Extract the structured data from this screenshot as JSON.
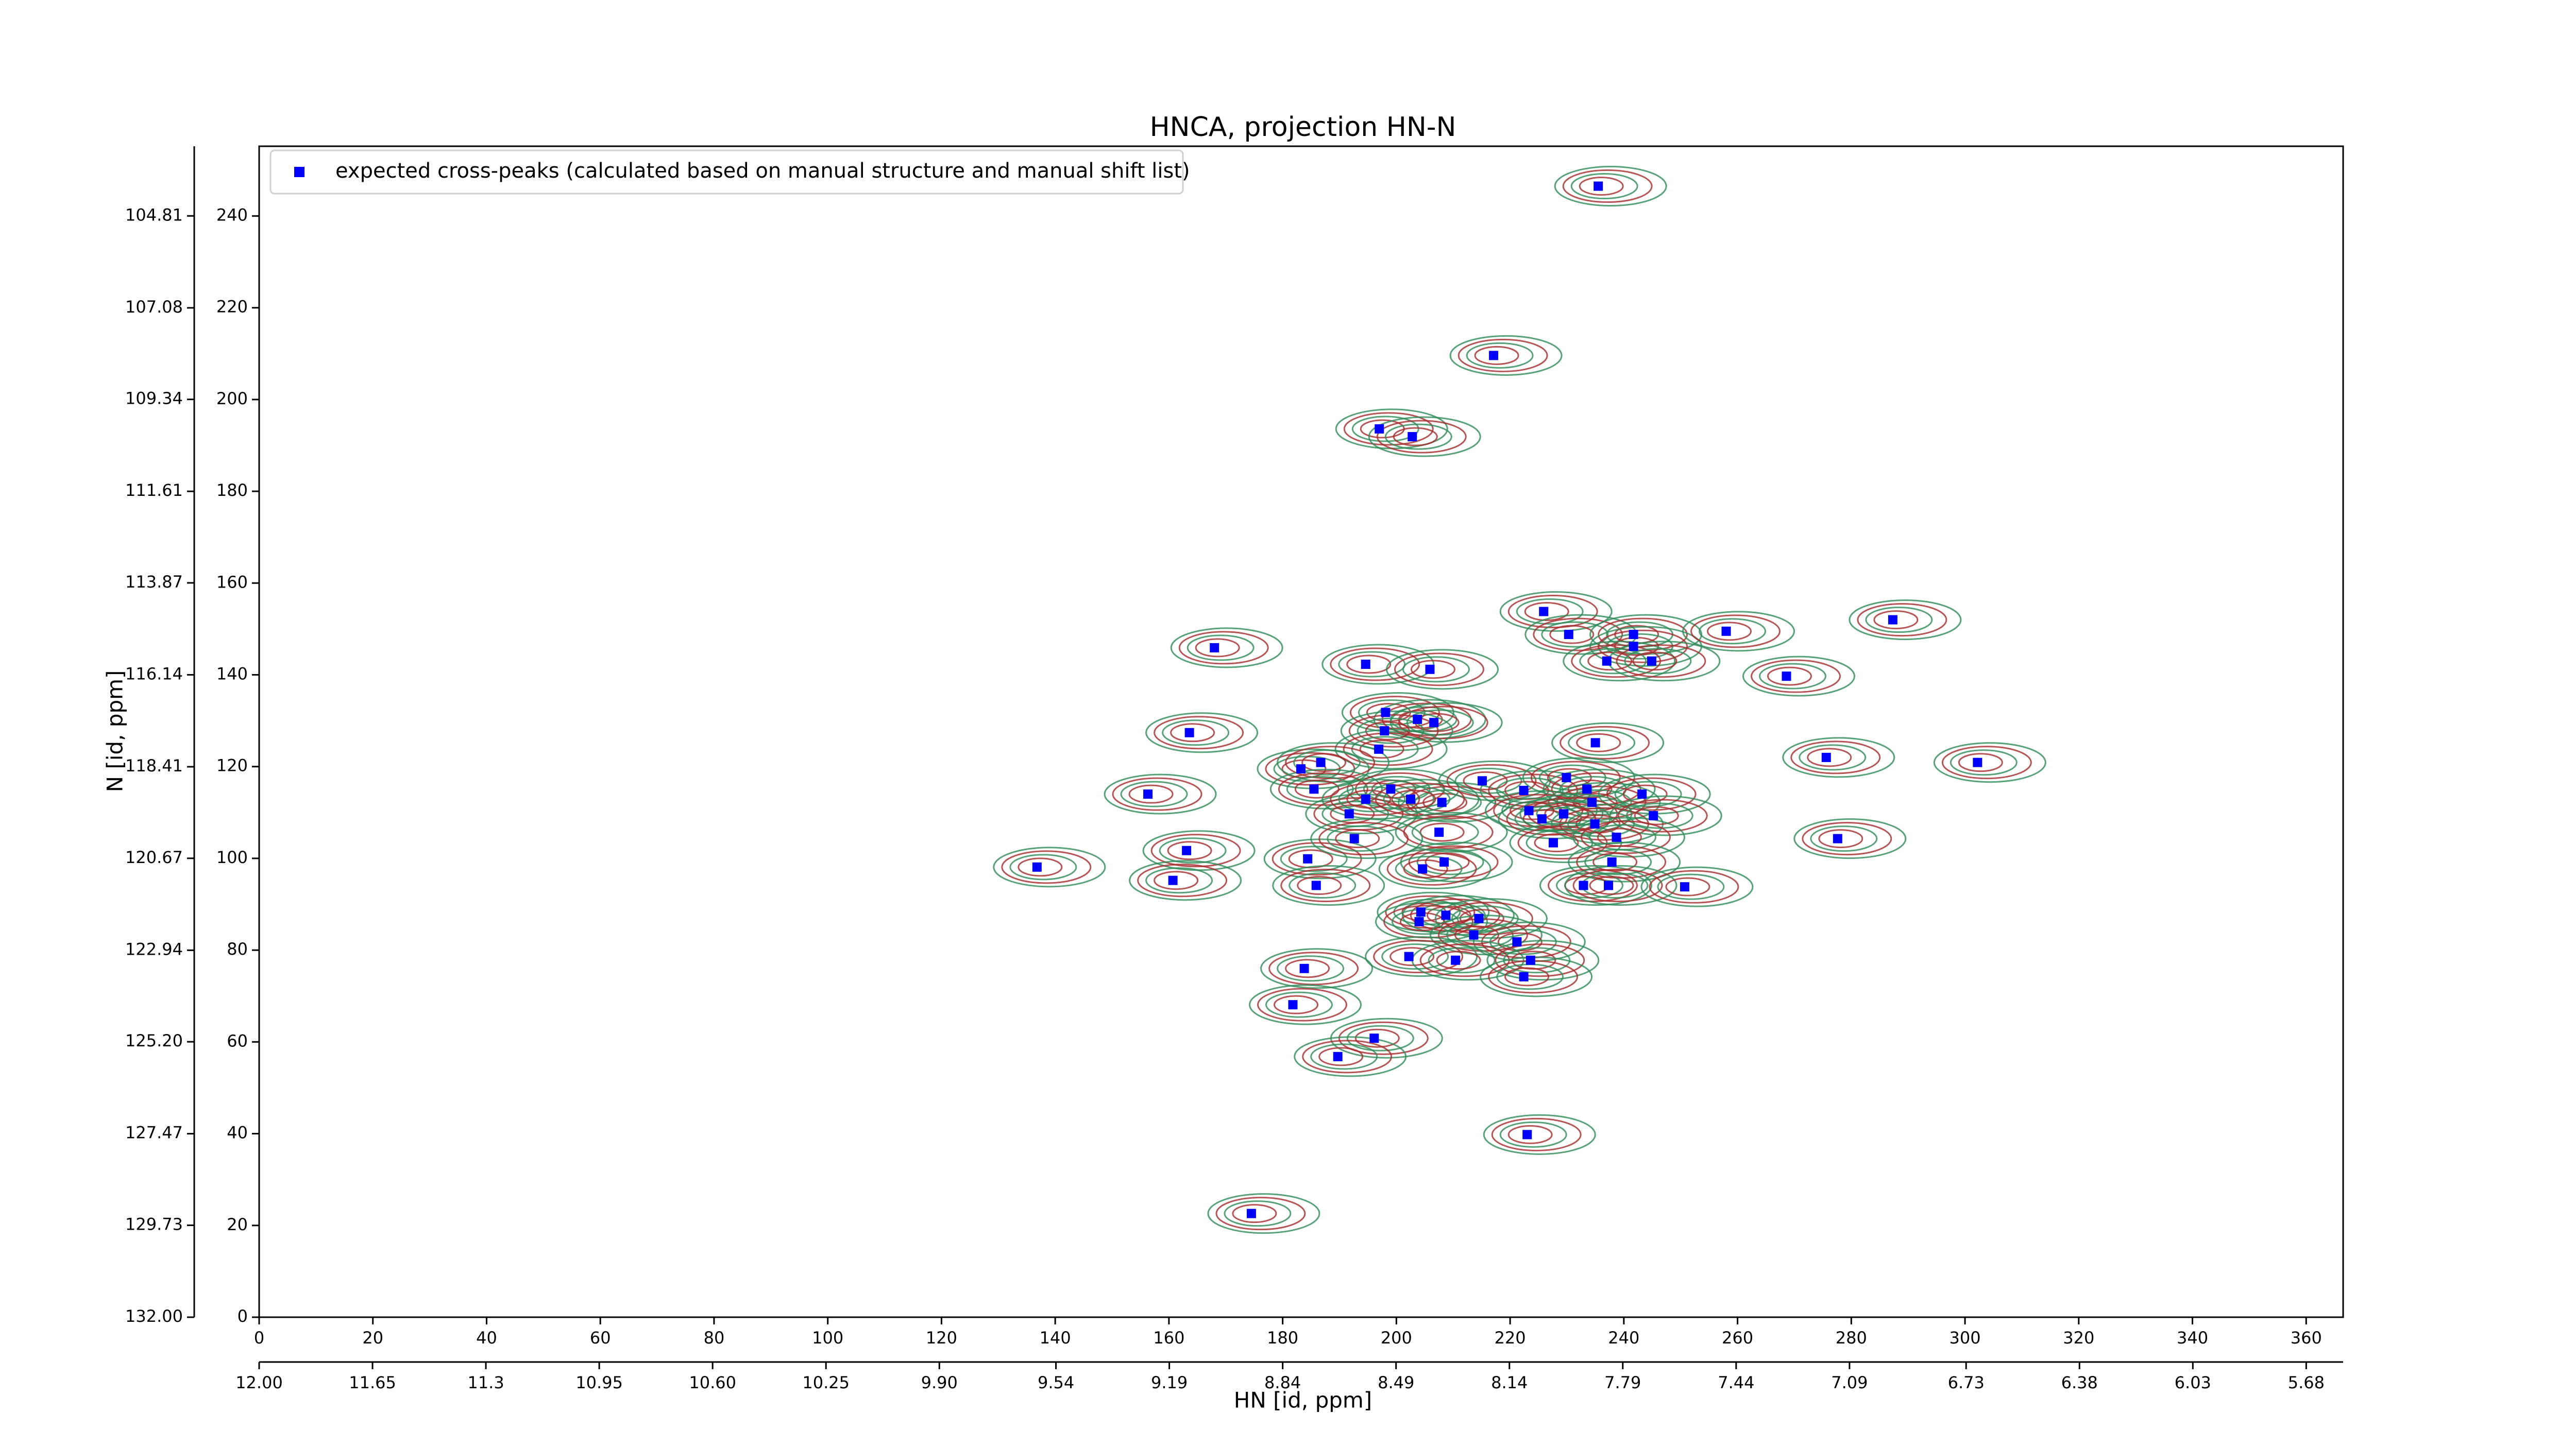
{
  "chart_data": {
    "type": "scatter",
    "title": "HNCA, projection HN-N",
    "xlabel": "HN [id, ppm]",
    "ylabel": "N [id, ppm]",
    "legend": "upper left",
    "contour_colors": [
      "#a52a2a",
      "#2e8b57"
    ],
    "xlim": [
      0,
      366.5
    ],
    "ylim": [
      0,
      255.2
    ],
    "xticks": [
      0,
      20,
      40,
      60,
      80,
      100,
      120,
      140,
      160,
      180,
      200,
      220,
      240,
      260,
      280,
      300,
      320,
      340,
      360
    ],
    "yticks": [
      0,
      20,
      40,
      60,
      80,
      100,
      120,
      140,
      160,
      180,
      200,
      220,
      240
    ],
    "x2lim": [
      12.0,
      5.566
    ],
    "x2ticks": [
      {
        "value": 12.0,
        "label": "12.00"
      },
      11.65,
      11.3,
      10.95,
      {
        "value": 10.6,
        "label": "10.60"
      },
      10.25,
      {
        "value": 9.9,
        "label": "9.90"
      },
      9.54,
      9.19,
      8.84,
      8.49,
      8.14,
      7.79,
      7.44,
      7.09,
      6.73,
      6.38,
      6.03,
      5.68
    ],
    "y2lim": [
      132.0,
      103.09
    ],
    "y2ticks": [
      {
        "value": 132.0,
        "label": "132.00"
      },
      129.73,
      127.47,
      {
        "value": 125.2,
        "label": "125.20"
      },
      122.94,
      120.67,
      118.41,
      116.14,
      113.87,
      111.61,
      109.34,
      107.08,
      104.81
    ],
    "series": [
      {
        "name": "expected cross-peaks (calculated based on manual structure and manual shift list)",
        "color": "#0000ff",
        "x": [
          235.5,
          217.1,
          197.0,
          202.8,
          225.9,
          230.3,
          241.7,
          241.7,
          258.0,
          287.3,
          168.0,
          194.6,
          205.9,
          237.0,
          244.9,
          268.6,
          163.6,
          198.1,
          203.7,
          206.6,
          197.9,
          235.0,
          196.9,
          183.2,
          186.7,
          275.6,
          302.2,
          156.3,
          185.5,
          199.0,
          208.0,
          215.1,
          222.4,
          229.9,
          233.5,
          234.4,
          243.2,
          191.7,
          194.6,
          202.5,
          223.3,
          225.6,
          229.4,
          234.9,
          245.2,
          207.5,
          227.6,
          238.7,
          163.1,
          184.4,
          277.6,
          208.4,
          204.6,
          237.9,
          136.8,
          160.7,
          185.9,
          232.9,
          237.3,
          250.7,
          204.3,
          208.7,
          204.0,
          214.5,
          213.6,
          221.2,
          202.2,
          210.4,
          223.6,
          183.8,
          222.4,
          181.8,
          196.1,
          189.7,
          223.0,
          174.5,
          192.6
        ],
        "values": [
          246.5,
          209.6,
          193.6,
          191.9,
          153.8,
          148.8,
          148.8,
          146.2,
          149.5,
          152.0,
          145.9,
          142.3,
          141.2,
          143.0,
          143.0,
          139.7,
          127.4,
          131.8,
          130.3,
          129.6,
          127.8,
          125.2,
          123.8,
          119.5,
          120.9,
          122.0,
          120.9,
          114.0,
          115.1,
          115.1,
          112.2,
          116.9,
          114.8,
          117.6,
          115.1,
          112.2,
          114.0,
          109.7,
          112.9,
          112.9,
          110.4,
          108.6,
          109.7,
          107.5,
          109.3,
          105.7,
          103.4,
          104.6,
          101.7,
          99.9,
          104.3,
          99.2,
          97.7,
          99.2,
          98.1,
          95.2,
          94.1,
          94.1,
          94.1,
          93.8,
          88.3,
          87.6,
          86.2,
          86.9,
          83.3,
          81.8,
          78.6,
          77.8,
          77.8,
          76.0,
          74.2,
          68.1,
          60.8,
          56.8,
          39.8,
          22.6,
          104.3
        ]
      }
    ]
  }
}
